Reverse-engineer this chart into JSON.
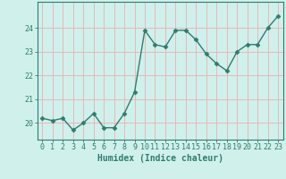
{
  "x": [
    0,
    1,
    2,
    3,
    4,
    5,
    6,
    7,
    8,
    9,
    10,
    11,
    12,
    13,
    14,
    15,
    16,
    17,
    18,
    19,
    20,
    21,
    22,
    23
  ],
  "y": [
    20.2,
    20.1,
    20.2,
    19.7,
    20.0,
    20.4,
    19.8,
    19.8,
    20.4,
    21.3,
    23.9,
    23.3,
    23.2,
    23.9,
    23.9,
    23.5,
    22.9,
    22.5,
    22.2,
    23.0,
    23.3,
    23.3,
    24.0,
    24.5
  ],
  "line_color": "#2e7d6e",
  "marker": "D",
  "bg_color": "#d0f0ec",
  "grid_color": "#e8b8b8",
  "axis_color": "#2e7d6e",
  "xlabel": "Humidex (Indice chaleur)",
  "xlim": [
    -0.5,
    23.5
  ],
  "ylim": [
    19.3,
    25.1
  ],
  "yticks": [
    20,
    21,
    22,
    23,
    24
  ],
  "xticks": [
    0,
    1,
    2,
    3,
    4,
    5,
    6,
    7,
    8,
    9,
    10,
    11,
    12,
    13,
    14,
    15,
    16,
    17,
    18,
    19,
    20,
    21,
    22,
    23
  ],
  "xlabel_fontsize": 7.0,
  "tick_fontsize": 6.0,
  "markersize": 2.5,
  "linewidth": 1.0
}
